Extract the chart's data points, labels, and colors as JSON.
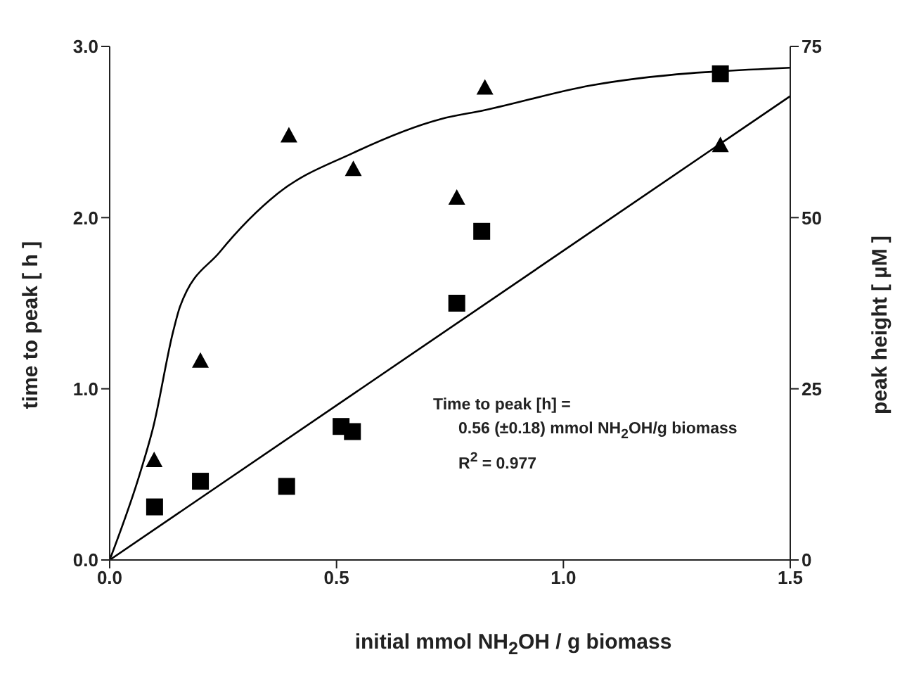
{
  "chart_data": {
    "type": "scatter",
    "xlabel": "initial mmol NH$_{2}$OH / g biomass",
    "ylabel": "time to peak [ h ]",
    "y2label": "peak height [ µM ]",
    "xlim": [
      0,
      1.5
    ],
    "xticks": [
      {
        "value": 0,
        "label": "0.0"
      },
      {
        "value": 0.5,
        "label": "0.5"
      },
      {
        "value": 1,
        "label": "1.0"
      },
      {
        "value": 1.5,
        "label": "1.5"
      }
    ],
    "ylim": [
      0,
      3
    ],
    "yticks": [
      {
        "value": 0,
        "label": "0.0"
      },
      {
        "value": 1,
        "label": "1.0"
      },
      {
        "value": 2,
        "label": "2.0"
      },
      {
        "value": 3,
        "label": "3.0"
      }
    ],
    "y2lim": [
      0,
      75
    ],
    "y2ticks": [
      0,
      25,
      50,
      75
    ],
    "grid": false,
    "legend": false,
    "annotations": [
      "Time to peak [h] =",
      "0.56 (±0.18) mmol NH$_{2}$OH/g biomass",
      "R$^{2}$ = 0.977"
    ],
    "series": [
      {
        "marker": "square",
        "color": "#000000",
        "x": [
          0.099,
          0.2,
          0.39,
          0.51,
          0.535,
          0.765,
          0.82,
          1.346
        ],
        "values": [
          0.31,
          0.46,
          0.43,
          0.78,
          0.75,
          1.5,
          1.92,
          2.84
        ]
      },
      {
        "type": "scatter",
        "marker": "triangle",
        "axis": "y2",
        "color": "#000000",
        "x": [
          0.098,
          0.2,
          0.395,
          0.537,
          0.765,
          0.827,
          1.346
        ],
        "values": [
          14.6,
          29.1,
          62,
          57.1,
          52.9,
          69,
          60.6
        ]
      },
      {
        "type": "line",
        "marker": "none",
        "color": "#000000",
        "x": [
          0,
          1.5
        ],
        "values": [
          0,
          2.71
        ]
      },
      {
        "type": "line",
        "marker": "none",
        "axis": "y2",
        "color": "#000000",
        "x": [
          0,
          0.067,
          0.096,
          0.14,
          0.155,
          0.243,
          0.37,
          0.535,
          0.73,
          0.827,
          1.06,
          1.5
        ],
        "values": [
          0,
          12.7,
          19.4,
          33.4,
          37,
          45,
          53.5,
          59.4,
          64.4,
          65.7,
          69.3,
          71.9
        ]
      }
    ]
  }
}
